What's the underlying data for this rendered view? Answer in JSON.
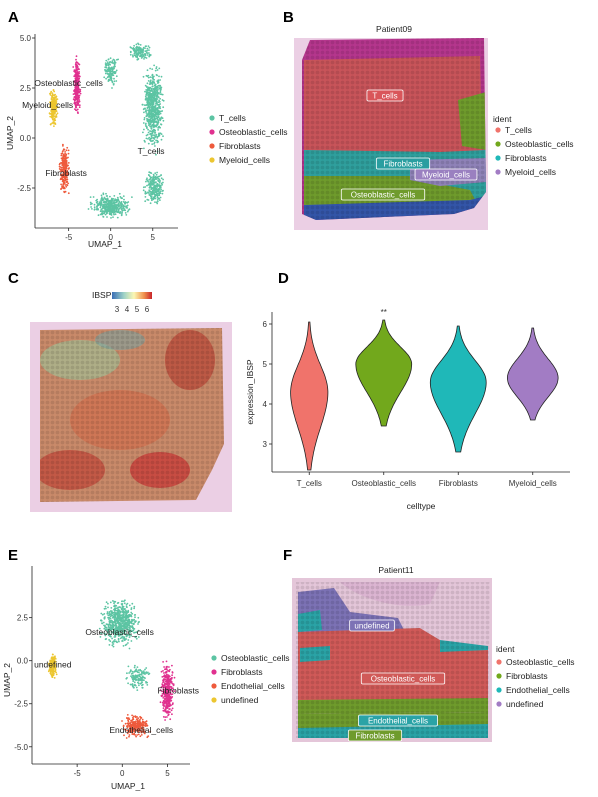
{
  "colors": {
    "t_cells": "#5cc4a3",
    "osteoblastic": "#e0318f",
    "fibroblasts": "#ee5a3c",
    "myeloid": "#ecc630",
    "ggplot_red": "#f0736b",
    "ggplot_green": "#72a81c",
    "ggplot_teal": "#1fb8b8",
    "ggplot_purple": "#a27cc4",
    "tissue_pink": "#e9c3de",
    "tissue_magenta": "#b5368d"
  },
  "chart_data": [
    {
      "panel": "A",
      "type": "scatter",
      "xlabel": "UMAP_1",
      "ylabel": "UMAP_2",
      "x_ticks": [
        "-5",
        "0",
        "5"
      ],
      "y_ticks": [
        "-2.5",
        "0.0",
        "2.5",
        "5.0"
      ],
      "xlim": [
        -9,
        8
      ],
      "ylim": [
        -4.5,
        5.2
      ],
      "cluster_labels": [
        {
          "text": "Osteoblastic_cells",
          "x": -5.0,
          "y": 2.6
        },
        {
          "text": "Myeloid_cells",
          "x": -7.5,
          "y": 1.5
        },
        {
          "text": "T_cells",
          "x": 4.8,
          "y": -0.8
        },
        {
          "text": "Fibroblasts",
          "x": -5.3,
          "y": -1.9
        }
      ],
      "legend": [
        "T_cells",
        "Osteoblastic_cells",
        "Fibroblasts",
        "Myeloid_cells"
      ]
    },
    {
      "panel": "B",
      "type": "spatial",
      "title": "Patient09",
      "legend_title": "ident",
      "legend": [
        "T_cells",
        "Osteoblastic_cells",
        "Fibroblasts",
        "Myeloid_cells"
      ],
      "region_labels": [
        "T_cells",
        "Fibroblasts",
        "Myeloid_cells",
        "Osteoblastic_cells"
      ]
    },
    {
      "panel": "C",
      "type": "heatmap",
      "gene": "IBSP",
      "colorbar_ticks": [
        "3",
        "4",
        "5",
        "6"
      ]
    },
    {
      "panel": "D",
      "type": "violin",
      "xlabel": "celltype",
      "ylabel": "expression_IBSP",
      "categories": [
        "T_cells",
        "Osteoblastic_cells",
        "Fibroblasts",
        "Myeloid_cells"
      ],
      "y_ticks": [
        "3",
        "4",
        "5",
        "6"
      ],
      "ylim": [
        2.3,
        6.3
      ],
      "significance": {
        "category": "Osteoblastic_cells",
        "text": "**"
      },
      "violins": [
        {
          "min": 2.35,
          "max": 6.05,
          "mode": 4.3,
          "width": 0.5
        },
        {
          "min": 3.45,
          "max": 6.1,
          "mode": 5.0,
          "width": 0.75
        },
        {
          "min": 2.8,
          "max": 5.95,
          "mode": 4.55,
          "width": 0.75
        },
        {
          "min": 3.6,
          "max": 5.9,
          "mode": 4.65,
          "width": 0.68
        }
      ]
    },
    {
      "panel": "E",
      "type": "scatter",
      "xlabel": "UMAP_1",
      "ylabel": "UMAP_2",
      "x_ticks": [
        "-5",
        "0",
        "5"
      ],
      "y_ticks": [
        "-5.0",
        "-2.5",
        "0.0",
        "2.5"
      ],
      "xlim": [
        -10,
        7.5
      ],
      "ylim": [
        -6,
        5.5
      ],
      "cluster_labels": [
        {
          "text": "Osteoblastic_cells",
          "x": -0.3,
          "y": 1.5
        },
        {
          "text": "undefined",
          "x": -7.7,
          "y": -0.4
        },
        {
          "text": "Fibroblasts",
          "x": 6.2,
          "y": -1.9
        },
        {
          "text": "Endothelial_cells",
          "x": 2.1,
          "y": -4.2
        }
      ],
      "legend": [
        "Osteoblastic_cells",
        "Fibroblasts",
        "Endothelial_cells",
        "undefined"
      ]
    },
    {
      "panel": "F",
      "type": "spatial",
      "title": "Patient11",
      "legend_title": "ident",
      "legend": [
        "Osteoblastic_cells",
        "Fibroblasts",
        "Endothelial_cells",
        "undefined"
      ],
      "region_labels": [
        "undefined",
        "Osteoblastic_cells",
        "Endothelial_cells",
        "Fibroblasts"
      ]
    }
  ],
  "panel_labels": [
    "A",
    "B",
    "C",
    "D",
    "E",
    "F"
  ]
}
